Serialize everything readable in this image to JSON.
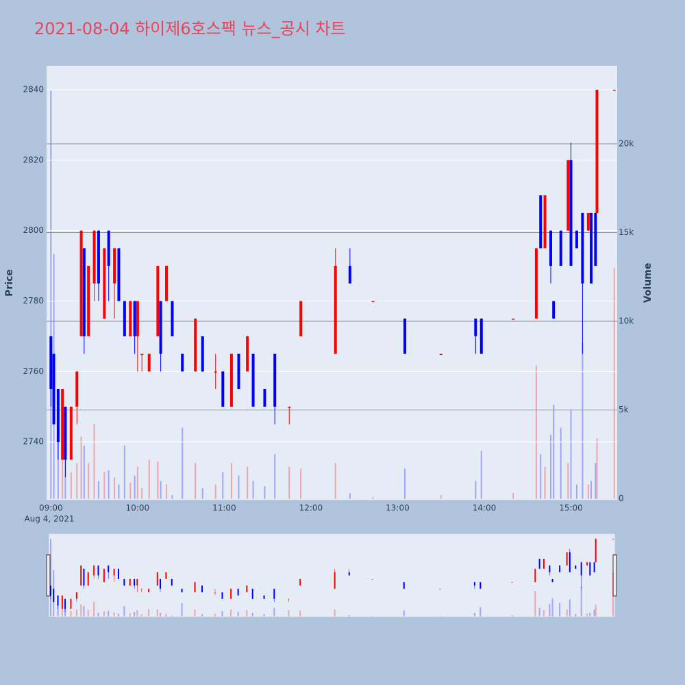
{
  "chart_data": {
    "type": "candlestick",
    "title": "2021-08-04 하이제6호스팩 뉴스_공시 차트",
    "y_label": "Price",
    "y2_label": "Volume",
    "x_date_label": "Aug 4, 2021",
    "increasing_color": "#ff0000",
    "decreasing_color": "#0000ff",
    "grid": true,
    "rangeslider": true,
    "xlim": [
      "2021-08-04 08:57",
      "2021-08-04 15:32"
    ],
    "xticks": [
      {
        "value": "2021-08-04 09:00",
        "label": "09:00"
      },
      {
        "value": "2021-08-04 10:00",
        "label": "10:00"
      },
      {
        "value": "2021-08-04 11:00",
        "label": "11:00"
      },
      {
        "value": "2021-08-04 12:00",
        "label": "12:00"
      },
      {
        "value": "2021-08-04 13:00",
        "label": "13:00"
      },
      {
        "value": "2021-08-04 14:00",
        "label": "14:00"
      },
      {
        "value": "2021-08-04 15:00",
        "label": "15:00"
      }
    ],
    "ylim": [
      2723.5,
      2846.8
    ],
    "yticks": [
      2740,
      2760,
      2780,
      2800,
      2820,
      2840
    ],
    "y2lim": [
      -77,
      24400
    ],
    "y2ticks": [
      0,
      {
        "value": 5000,
        "label": "5k"
      },
      {
        "value": 10000,
        "label": "10k"
      },
      {
        "value": 15000,
        "label": "15k"
      },
      {
        "value": 20000,
        "label": "20k"
      }
    ],
    "x": [
      "2021-08-04 09:00",
      "2021-08-04 09:02",
      "2021-08-04 09:05",
      "2021-08-04 09:08",
      "2021-08-04 09:10",
      "2021-08-04 09:14",
      "2021-08-04 09:18",
      "2021-08-04 09:21",
      "2021-08-04 09:23",
      "2021-08-04 09:26",
      "2021-08-04 09:30",
      "2021-08-04 09:33",
      "2021-08-04 09:37",
      "2021-08-04 09:40",
      "2021-08-04 09:44",
      "2021-08-04 09:47",
      "2021-08-04 09:51",
      "2021-08-04 09:55",
      "2021-08-04 09:58",
      "2021-08-04 10:00",
      "2021-08-04 10:03",
      "2021-08-04 10:08",
      "2021-08-04 10:14",
      "2021-08-04 10:16",
      "2021-08-04 10:20",
      "2021-08-04 10:24",
      "2021-08-04 10:31",
      "2021-08-04 10:40",
      "2021-08-04 10:45",
      "2021-08-04 10:54",
      "2021-08-04 10:59",
      "2021-08-04 11:05",
      "2021-08-04 11:10",
      "2021-08-04 11:16",
      "2021-08-04 11:20",
      "2021-08-04 11:28",
      "2021-08-04 11:35",
      "2021-08-04 11:45",
      "2021-08-04 11:53",
      "2021-08-04 12:17",
      "2021-08-04 12:27",
      "2021-08-04 12:43",
      "2021-08-04 13:05",
      "2021-08-04 13:30",
      "2021-08-04 13:54",
      "2021-08-04 13:58",
      "2021-08-04 14:20",
      "2021-08-04 14:36",
      "2021-08-04 14:39",
      "2021-08-04 14:42",
      "2021-08-04 14:46",
      "2021-08-04 14:48",
      "2021-08-04 14:53",
      "2021-08-04 14:58",
      "2021-08-04 15:00",
      "2021-08-04 15:04",
      "2021-08-04 15:08",
      "2021-08-04 15:12",
      "2021-08-04 15:14",
      "2021-08-04 15:17",
      "2021-08-04 15:18",
      "2021-08-04 15:30"
    ],
    "open": [
      2770,
      2765,
      2755,
      2735,
      2750,
      2735,
      2750,
      2770,
      2795,
      2770,
      2785,
      2800,
      2775,
      2800,
      2785,
      2795,
      2780,
      2770,
      2780,
      2770,
      2765,
      2760,
      2770,
      2780,
      2780,
      2780,
      2765,
      2760,
      2770,
      2760,
      2760,
      2750,
      2765,
      2760,
      2765,
      2755,
      2765,
      2750,
      2770,
      2765,
      2790,
      2780,
      2775,
      2765,
      2775,
      2775,
      2775,
      2775,
      2810,
      2795,
      2800,
      2780,
      2800,
      2800,
      2820,
      2800,
      2805,
      2800,
      2805,
      2805,
      2805,
      2840
    ],
    "high": [
      2770,
      2765,
      2755,
      2755,
      2750,
      2750,
      2760,
      2800,
      2795,
      2790,
      2800,
      2800,
      2795,
      2800,
      2795,
      2795,
      2780,
      2780,
      2780,
      2780,
      2765,
      2765,
      2790,
      2780,
      2790,
      2780,
      2765,
      2775,
      2770,
      2765,
      2760,
      2765,
      2765,
      2770,
      2765,
      2755,
      2765,
      2750,
      2780,
      2795,
      2795,
      2780,
      2775,
      2765,
      2775,
      2775,
      2775,
      2795,
      2810,
      2810,
      2800,
      2780,
      2800,
      2820,
      2825,
      2800,
      2805,
      2805,
      2805,
      2805,
      2840,
      2840
    ],
    "low": [
      2750,
      2745,
      2735,
      2735,
      2730,
      2735,
      2745,
      2770,
      2765,
      2770,
      2780,
      2780,
      2775,
      2780,
      2775,
      2780,
      2770,
      2770,
      2765,
      2760,
      2760,
      2760,
      2770,
      2760,
      2780,
      2770,
      2760,
      2760,
      2760,
      2755,
      2750,
      2750,
      2755,
      2760,
      2750,
      2750,
      2745,
      2745,
      2770,
      2765,
      2785,
      2780,
      2765,
      2765,
      2765,
      2765,
      2775,
      2775,
      2795,
      2795,
      2785,
      2775,
      2790,
      2800,
      2790,
      2795,
      2765,
      2800,
      2785,
      2790,
      2805,
      2840
    ],
    "close": [
      2755,
      2745,
      2740,
      2755,
      2735,
      2750,
      2760,
      2800,
      2770,
      2790,
      2800,
      2785,
      2795,
      2790,
      2795,
      2780,
      2770,
      2780,
      2770,
      2780,
      2765,
      2765,
      2790,
      2765,
      2790,
      2770,
      2760,
      2775,
      2760,
      2760,
      2750,
      2765,
      2755,
      2770,
      2750,
      2750,
      2750,
      2750,
      2780,
      2790,
      2785,
      2780,
      2765,
      2765,
      2770,
      2765,
      2775,
      2795,
      2795,
      2810,
      2790,
      2775,
      2790,
      2820,
      2790,
      2795,
      2785,
      2805,
      2785,
      2790,
      2840,
      2840
    ],
    "volume": [
      23000,
      13800,
      4000,
      2500,
      3000,
      1500,
      2000,
      3500,
      3000,
      2000,
      4200,
      1000,
      1500,
      1600,
      1200,
      800,
      3000,
      900,
      1300,
      1800,
      600,
      2200,
      2100,
      1000,
      800,
      200,
      4000,
      2000,
      600,
      800,
      1500,
      2000,
      1300,
      1800,
      1000,
      700,
      2500,
      1800,
      1700,
      2000,
      300,
      100,
      1700,
      200,
      1000,
      2700,
      300,
      7500,
      2500,
      1800,
      3600,
      5300,
      4000,
      2000,
      5000,
      800,
      8800,
      800,
      1000,
      2000,
      3400,
      13000
    ]
  }
}
